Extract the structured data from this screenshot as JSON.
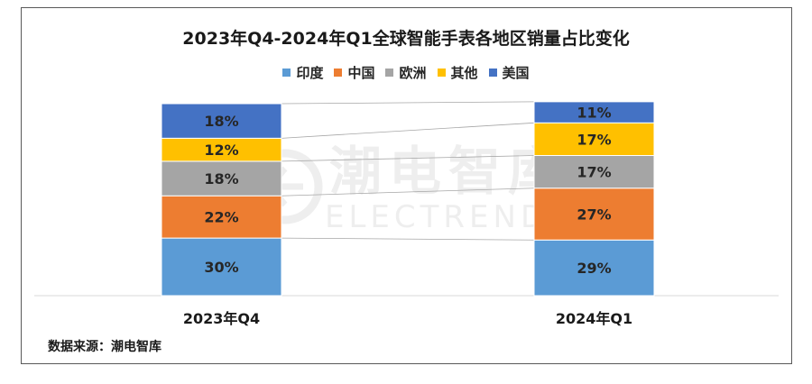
{
  "title": "2023年Q4-2024年Q1全球智能手表各地区销量占比变化",
  "source": "数据来源：潮电智库",
  "watermark": {
    "cn": "潮电智库",
    "en": "ELECTREND.NET"
  },
  "colors": {
    "印度": "#5b9bd5",
    "中国": "#ed7d31",
    "欧洲": "#a5a5a5",
    "其他": "#ffc000",
    "美国": "#4472c4"
  },
  "chart_data": {
    "type": "bar",
    "stacked": true,
    "normalized_percent": true,
    "categories": [
      "2023年Q4",
      "2024年Q1"
    ],
    "series": [
      {
        "name": "印度",
        "values": [
          30,
          29
        ],
        "labels": [
          "30%",
          "29%"
        ]
      },
      {
        "name": "中国",
        "values": [
          22,
          27
        ],
        "labels": [
          "22%",
          "27%"
        ]
      },
      {
        "name": "欧洲",
        "values": [
          18,
          17
        ],
        "labels": [
          "18%",
          "17%"
        ]
      },
      {
        "name": "其他",
        "values": [
          12,
          17
        ],
        "labels": [
          "12%",
          "17%"
        ]
      },
      {
        "name": "美国",
        "values": [
          18,
          11
        ],
        "labels": [
          "18%",
          "11%"
        ]
      }
    ],
    "ylim": [
      0,
      100
    ],
    "legend": "top",
    "series_lines": true,
    "grid": false
  }
}
